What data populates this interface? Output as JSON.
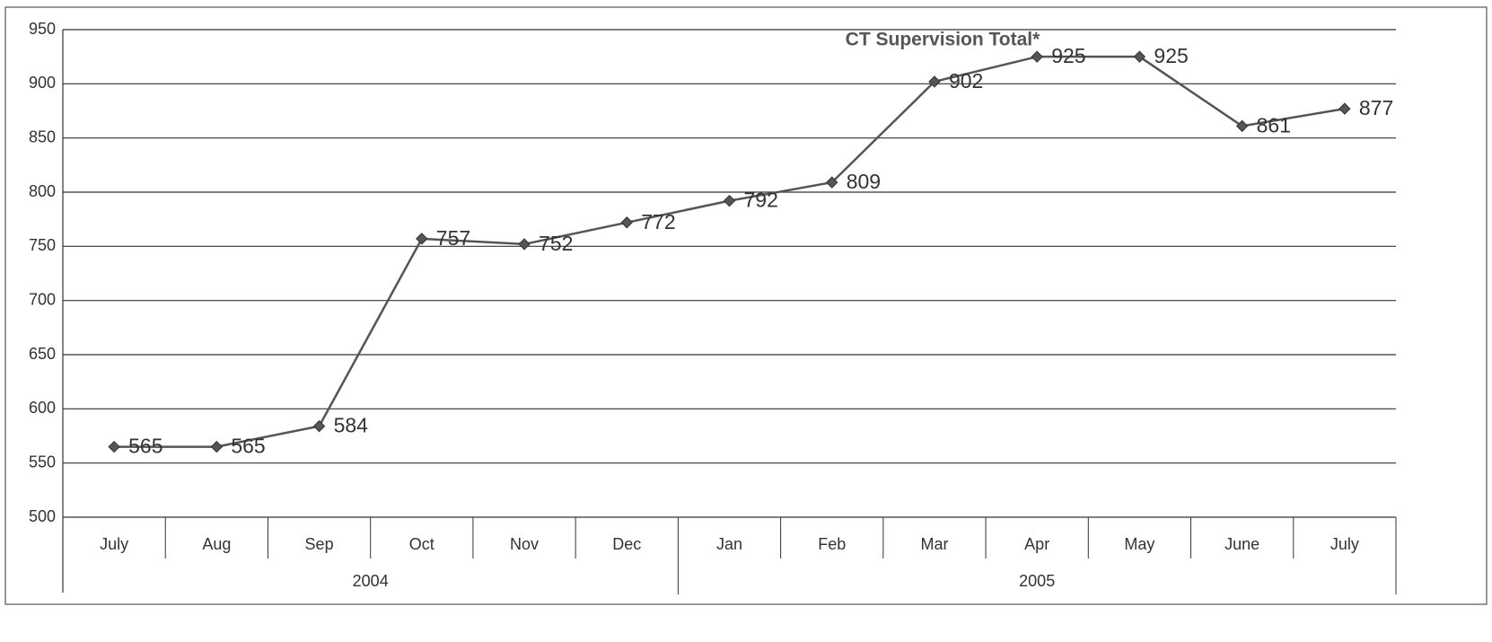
{
  "chart_data": {
    "type": "line",
    "title": "CT Supervision Total*",
    "groups": [
      {
        "label": "2004",
        "categories": [
          "July",
          "Aug",
          "Sep",
          "Oct",
          "Nov",
          "Dec"
        ]
      },
      {
        "label": "2005",
        "categories": [
          "Jan",
          "Feb",
          "Mar",
          "Apr",
          "May",
          "June",
          "July"
        ]
      }
    ],
    "values": [
      565,
      565,
      584,
      757,
      752,
      772,
      792,
      809,
      902,
      925,
      925,
      861,
      877
    ],
    "color": "#555555",
    "ylim": [
      500,
      950
    ],
    "yticks": [
      500,
      550,
      600,
      650,
      700,
      750,
      800,
      850,
      900,
      950
    ],
    "grid": true
  }
}
